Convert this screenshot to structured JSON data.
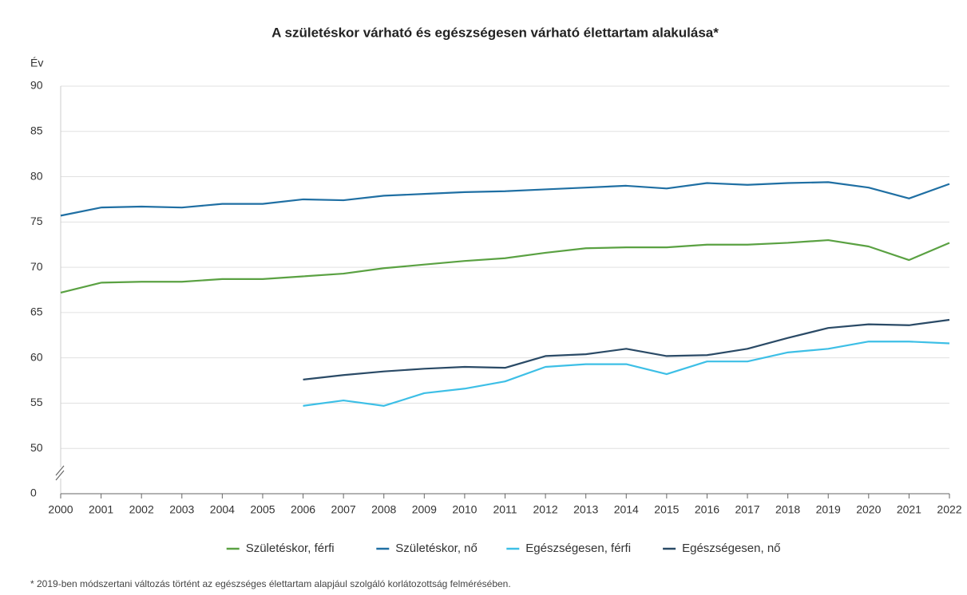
{
  "chart_data": {
    "type": "line",
    "title": "A születéskor várható és egészségesen várható élettartam alakulása*",
    "y_label": "Év",
    "footnote": "* 2019-ben módszertani változás történt az egészséges élettartam alapjául szolgáló korlátozottság felmérésében.",
    "categories": [
      "2000",
      "2001",
      "2002",
      "2003",
      "2004",
      "2005",
      "2006",
      "2007",
      "2008",
      "2009",
      "2010",
      "2011",
      "2012",
      "2013",
      "2014",
      "2015",
      "2016",
      "2017",
      "2018",
      "2019",
      "2020",
      "2021",
      "2022"
    ],
    "series": [
      {
        "name": "Születéskor, férfi",
        "color": "#5aa142",
        "values": [
          67.2,
          68.3,
          68.4,
          68.4,
          68.7,
          68.7,
          69.0,
          69.3,
          69.9,
          70.3,
          70.7,
          71.0,
          71.6,
          72.1,
          72.2,
          72.2,
          72.5,
          72.5,
          72.7,
          73.0,
          72.3,
          70.8,
          72.7
        ]
      },
      {
        "name": "Születéskor, nő",
        "color": "#1f6fa3",
        "values": [
          75.7,
          76.6,
          76.7,
          76.6,
          77.0,
          77.0,
          77.5,
          77.4,
          77.9,
          78.1,
          78.3,
          78.4,
          78.6,
          78.8,
          79.0,
          78.7,
          79.3,
          79.1,
          79.3,
          79.4,
          78.8,
          77.6,
          79.2
        ]
      },
      {
        "name": "Egészségesen, férfi",
        "color": "#3dbfe6",
        "values": [
          null,
          null,
          null,
          null,
          null,
          null,
          54.7,
          55.3,
          54.7,
          56.1,
          56.6,
          57.4,
          59.0,
          59.3,
          59.3,
          58.2,
          59.6,
          59.6,
          60.6,
          61.0,
          61.8,
          61.8,
          61.6
        ]
      },
      {
        "name": "Egészségesen, nő",
        "color": "#2a4a66",
        "values": [
          null,
          null,
          null,
          null,
          null,
          null,
          57.6,
          58.1,
          58.5,
          58.8,
          59.0,
          58.9,
          60.2,
          60.4,
          61.0,
          60.2,
          60.3,
          61.0,
          62.2,
          63.3,
          63.7,
          63.6,
          64.2
        ]
      }
    ],
    "ylim": [
      0,
      90
    ],
    "yticks": [
      0,
      50,
      55,
      60,
      65,
      70,
      75,
      80,
      85,
      90
    ],
    "y_axis_break": true,
    "grid": true,
    "legend": "bottom"
  }
}
